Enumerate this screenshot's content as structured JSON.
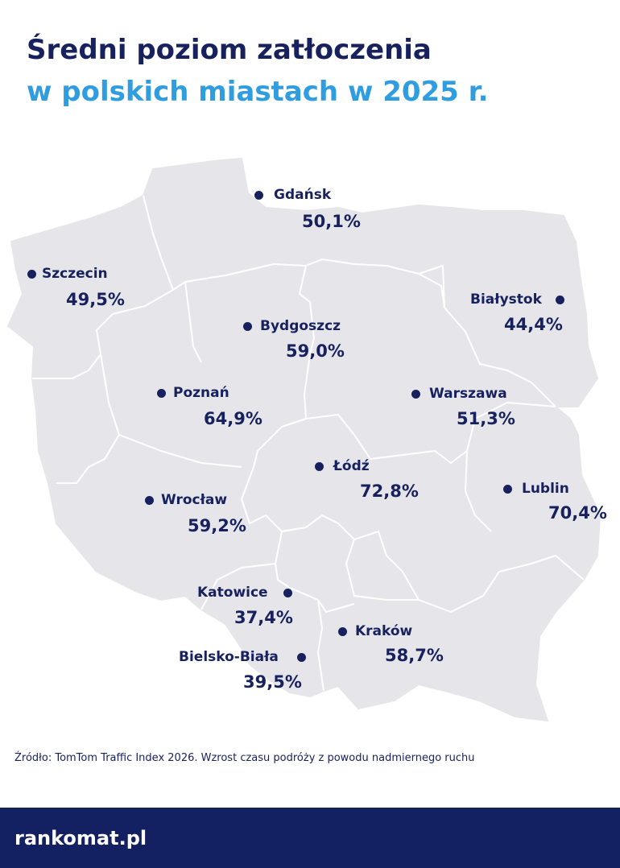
{
  "title": {
    "line1": "Średni poziom zatłoczenia",
    "line2": "w polskich miastach w 2025 r."
  },
  "colors": {
    "title_dark": "#16215e",
    "title_accent": "#2f9ddf",
    "map_fill": "#e6e6ea",
    "map_borders": "#ffffff",
    "footer_bg": "#132162"
  },
  "cities": [
    {
      "name": "Gdańsk",
      "value": "50,1%"
    },
    {
      "name": "Szczecin",
      "value": "49,5%"
    },
    {
      "name": "Białystok",
      "value": "44,4%"
    },
    {
      "name": "Bydgoszcz",
      "value": "59,0%"
    },
    {
      "name": "Poznań",
      "value": "64,9%"
    },
    {
      "name": "Warszawa",
      "value": "51,3%"
    },
    {
      "name": "Łódź",
      "value": "72,8%"
    },
    {
      "name": "Lublin",
      "value": "70,4%"
    },
    {
      "name": "Wrocław",
      "value": "59,2%"
    },
    {
      "name": "Katowice",
      "value": "37,4%"
    },
    {
      "name": "Kraków",
      "value": "58,7%"
    },
    {
      "name": "Bielsko-Biała",
      "value": "39,5%"
    }
  ],
  "source": "Źródło: TomTom Traffic Index 2026. Wzrost czasu podróży z powodu nadmiernego ruchu",
  "footer": {
    "brand": "rankomat.pl"
  }
}
